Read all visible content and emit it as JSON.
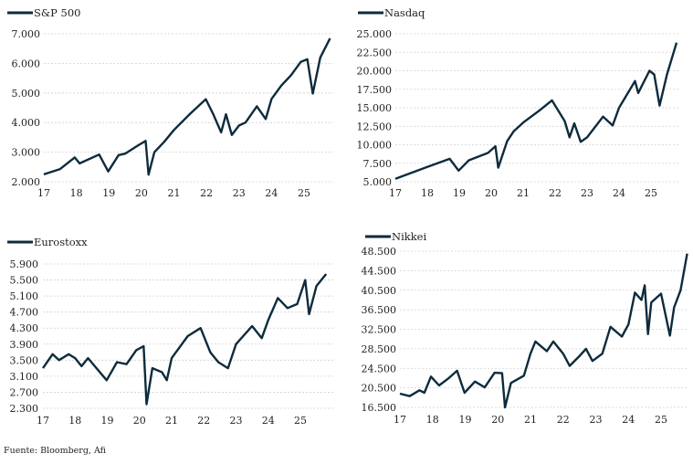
{
  "source": "Fuente: Bloomberg, Afi",
  "colors": {
    "line": "#0d2b3c",
    "grid": "#d0d0d0"
  },
  "chart_data": [
    {
      "type": "line",
      "title": "S&P 500",
      "legend": "top-left",
      "xlabels": [
        "17",
        "18",
        "19",
        "20",
        "21",
        "22",
        "23",
        "24",
        "25"
      ],
      "xlim": [
        2017,
        2025.85
      ],
      "yticks": [
        2000,
        3000,
        4000,
        5000,
        6000,
        7000
      ],
      "ylabels": [
        "2.000",
        "3.000",
        "4.000",
        "5.000",
        "6.000",
        "7.000"
      ],
      "ylim": [
        2000,
        7000
      ],
      "points": [
        [
          2017,
          2250
        ],
        [
          2017.5,
          2430
        ],
        [
          2017.95,
          2820
        ],
        [
          2018.1,
          2620
        ],
        [
          2018.7,
          2920
        ],
        [
          2018.98,
          2350
        ],
        [
          2019.3,
          2900
        ],
        [
          2019.5,
          2950
        ],
        [
          2019.9,
          3230
        ],
        [
          2020.13,
          3380
        ],
        [
          2020.22,
          2240
        ],
        [
          2020.4,
          3000
        ],
        [
          2020.7,
          3350
        ],
        [
          2021,
          3750
        ],
        [
          2021.5,
          4300
        ],
        [
          2021.98,
          4790
        ],
        [
          2022.2,
          4300
        ],
        [
          2022.45,
          3670
        ],
        [
          2022.6,
          4280
        ],
        [
          2022.78,
          3580
        ],
        [
          2023,
          3900
        ],
        [
          2023.2,
          4000
        ],
        [
          2023.55,
          4550
        ],
        [
          2023.82,
          4120
        ],
        [
          2024,
          4800
        ],
        [
          2024.3,
          5250
        ],
        [
          2024.6,
          5600
        ],
        [
          2024.9,
          6050
        ],
        [
          2025.1,
          6140
        ],
        [
          2025.27,
          4980
        ],
        [
          2025.5,
          6200
        ],
        [
          2025.8,
          6850
        ]
      ]
    },
    {
      "type": "line",
      "title": "Nasdaq",
      "legend": "top-left",
      "xlabels": [
        "17",
        "18",
        "19",
        "20",
        "21",
        "22",
        "23",
        "24",
        "25"
      ],
      "xlim": [
        2017,
        2025.85
      ],
      "yticks": [
        5000,
        7500,
        10000,
        12500,
        15000,
        17500,
        20000,
        22500,
        25000
      ],
      "ylabels": [
        "5.000",
        "7.500",
        "10.000",
        "12.500",
        "15.000",
        "17.500",
        "20.000",
        "22.500",
        "25.000"
      ],
      "ylim": [
        5000,
        25000
      ],
      "points": [
        [
          2017,
          5400
        ],
        [
          2017.5,
          6200
        ],
        [
          2018,
          7000
        ],
        [
          2018.7,
          8100
        ],
        [
          2018.98,
          6500
        ],
        [
          2019.3,
          7900
        ],
        [
          2019.9,
          8900
        ],
        [
          2020.13,
          9800
        ],
        [
          2020.22,
          6900
        ],
        [
          2020.5,
          10500
        ],
        [
          2020.7,
          11800
        ],
        [
          2021,
          13000
        ],
        [
          2021.5,
          14600
        ],
        [
          2021.9,
          16000
        ],
        [
          2022.3,
          13200
        ],
        [
          2022.45,
          11000
        ],
        [
          2022.6,
          12900
        ],
        [
          2022.8,
          10400
        ],
        [
          2023,
          11000
        ],
        [
          2023.5,
          13800
        ],
        [
          2023.8,
          12600
        ],
        [
          2024,
          15000
        ],
        [
          2024.5,
          18600
        ],
        [
          2024.6,
          17000
        ],
        [
          2024.95,
          20000
        ],
        [
          2025.1,
          19500
        ],
        [
          2025.27,
          15300
        ],
        [
          2025.5,
          19500
        ],
        [
          2025.8,
          23800
        ]
      ]
    },
    {
      "type": "line",
      "title": "Eurostoxx",
      "legend": "top-left",
      "xlabels": [
        "17",
        "18",
        "19",
        "20",
        "21",
        "22",
        "23",
        "24",
        "25"
      ],
      "xlim": [
        2017,
        2025.85
      ],
      "yticks": [
        2300,
        2700,
        3100,
        3500,
        3900,
        4300,
        4700,
        5100,
        5500,
        5900
      ],
      "ylabels": [
        "2.300",
        "2.700",
        "3.100",
        "3.500",
        "3.900",
        "4.300",
        "4.700",
        "5.100",
        "5.500",
        "5.900"
      ],
      "ylim": [
        2300,
        5900
      ],
      "points": [
        [
          2017,
          3300
        ],
        [
          2017.3,
          3650
        ],
        [
          2017.5,
          3500
        ],
        [
          2017.8,
          3650
        ],
        [
          2018,
          3550
        ],
        [
          2018.2,
          3350
        ],
        [
          2018.4,
          3550
        ],
        [
          2018.98,
          3000
        ],
        [
          2019.3,
          3450
        ],
        [
          2019.6,
          3400
        ],
        [
          2019.9,
          3750
        ],
        [
          2020.13,
          3850
        ],
        [
          2020.22,
          2400
        ],
        [
          2020.4,
          3300
        ],
        [
          2020.7,
          3200
        ],
        [
          2020.85,
          3000
        ],
        [
          2021,
          3550
        ],
        [
          2021.5,
          4100
        ],
        [
          2021.9,
          4300
        ],
        [
          2022.2,
          3700
        ],
        [
          2022.45,
          3450
        ],
        [
          2022.75,
          3300
        ],
        [
          2023,
          3900
        ],
        [
          2023.5,
          4350
        ],
        [
          2023.8,
          4050
        ],
        [
          2024,
          4500
        ],
        [
          2024.3,
          5050
        ],
        [
          2024.6,
          4800
        ],
        [
          2024.9,
          4900
        ],
        [
          2025.15,
          5500
        ],
        [
          2025.27,
          4650
        ],
        [
          2025.5,
          5350
        ],
        [
          2025.8,
          5650
        ]
      ]
    },
    {
      "type": "line",
      "title": "Nikkei",
      "legend": "top-left",
      "xlabels": [
        "17",
        "18",
        "19",
        "20",
        "21",
        "22",
        "23",
        "24",
        "25"
      ],
      "xlim": [
        2017,
        2025.85
      ],
      "yticks": [
        16500,
        20500,
        24500,
        28500,
        32500,
        36500,
        40500,
        44500,
        48500
      ],
      "ylabels": [
        "16.500",
        "20.500",
        "24.500",
        "28.500",
        "32.500",
        "36.500",
        "40.500",
        "44.500",
        "48.500"
      ],
      "ylim": [
        16500,
        48500
      ],
      "points": [
        [
          2017,
          19300
        ],
        [
          2017.3,
          18800
        ],
        [
          2017.6,
          20000
        ],
        [
          2017.75,
          19500
        ],
        [
          2017.95,
          22800
        ],
        [
          2018.2,
          21000
        ],
        [
          2018.5,
          22500
        ],
        [
          2018.75,
          24000
        ],
        [
          2018.98,
          19500
        ],
        [
          2019.3,
          21800
        ],
        [
          2019.6,
          20600
        ],
        [
          2019.9,
          23600
        ],
        [
          2020.13,
          23500
        ],
        [
          2020.22,
          16500
        ],
        [
          2020.4,
          21500
        ],
        [
          2020.8,
          23000
        ],
        [
          2021,
          27500
        ],
        [
          2021.15,
          30000
        ],
        [
          2021.5,
          28000
        ],
        [
          2021.7,
          30000
        ],
        [
          2022,
          27500
        ],
        [
          2022.2,
          25000
        ],
        [
          2022.5,
          27000
        ],
        [
          2022.7,
          28500
        ],
        [
          2022.9,
          26000
        ],
        [
          2023.2,
          27500
        ],
        [
          2023.45,
          33000
        ],
        [
          2023.8,
          31000
        ],
        [
          2024,
          33500
        ],
        [
          2024.2,
          40000
        ],
        [
          2024.4,
          38500
        ],
        [
          2024.5,
          41500
        ],
        [
          2024.6,
          31500
        ],
        [
          2024.7,
          38000
        ],
        [
          2025,
          39800
        ],
        [
          2025.27,
          31200
        ],
        [
          2025.4,
          37000
        ],
        [
          2025.6,
          40500
        ],
        [
          2025.8,
          48000
        ]
      ]
    }
  ]
}
